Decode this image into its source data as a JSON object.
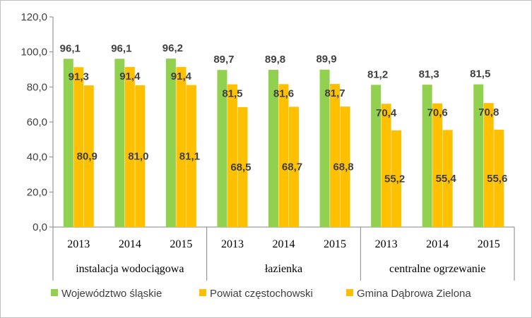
{
  "chart_data": {
    "type": "bar",
    "title": "",
    "xlabel": "",
    "ylabel": "",
    "ylim": [
      0,
      120
    ],
    "yticks": [
      "0,0",
      "20,0",
      "40,0",
      "60,0",
      "80,0",
      "100,0",
      "120,0"
    ],
    "grid": false,
    "legend_position": "bottom",
    "groups": [
      {
        "label": "instalacja wodociągowa",
        "years": [
          "2013",
          "2014",
          "2015"
        ]
      },
      {
        "label": "łazienka",
        "years": [
          "2013",
          "2014",
          "2015"
        ]
      },
      {
        "label": "centralne ogrzewanie",
        "years": [
          "2013",
          "2014",
          "2015"
        ]
      }
    ],
    "series": [
      {
        "name": "Województwo śląskie",
        "color": "#92d050",
        "values": [
          96.1,
          96.1,
          96.2,
          89.7,
          89.8,
          89.9,
          81.2,
          81.3,
          81.5
        ],
        "labels": [
          "96,1",
          "96,1",
          "96,2",
          "89,7",
          "89,8",
          "89,9",
          "81,2",
          "81,3",
          "81,5"
        ]
      },
      {
        "name": "Powiat częstochowski",
        "color": "#ffc000",
        "values": [
          91.3,
          91.4,
          91.4,
          81.5,
          81.6,
          81.7,
          70.4,
          70.6,
          70.8
        ],
        "labels": [
          "91,3",
          "91,4",
          "91,4",
          "81,5",
          "81,6",
          "81,7",
          "70,4",
          "70,6",
          "70,8"
        ]
      },
      {
        "name": "Gmina Dąbrowa Zielona",
        "color": "#ffc000",
        "values": [
          80.9,
          81.0,
          81.1,
          68.5,
          68.7,
          68.8,
          55.2,
          55.4,
          55.6
        ],
        "labels": [
          "80,9",
          "81,0",
          "81,1",
          "68,5",
          "68,7",
          "68,8",
          "55,2",
          "55,4",
          "55,6"
        ]
      }
    ]
  }
}
